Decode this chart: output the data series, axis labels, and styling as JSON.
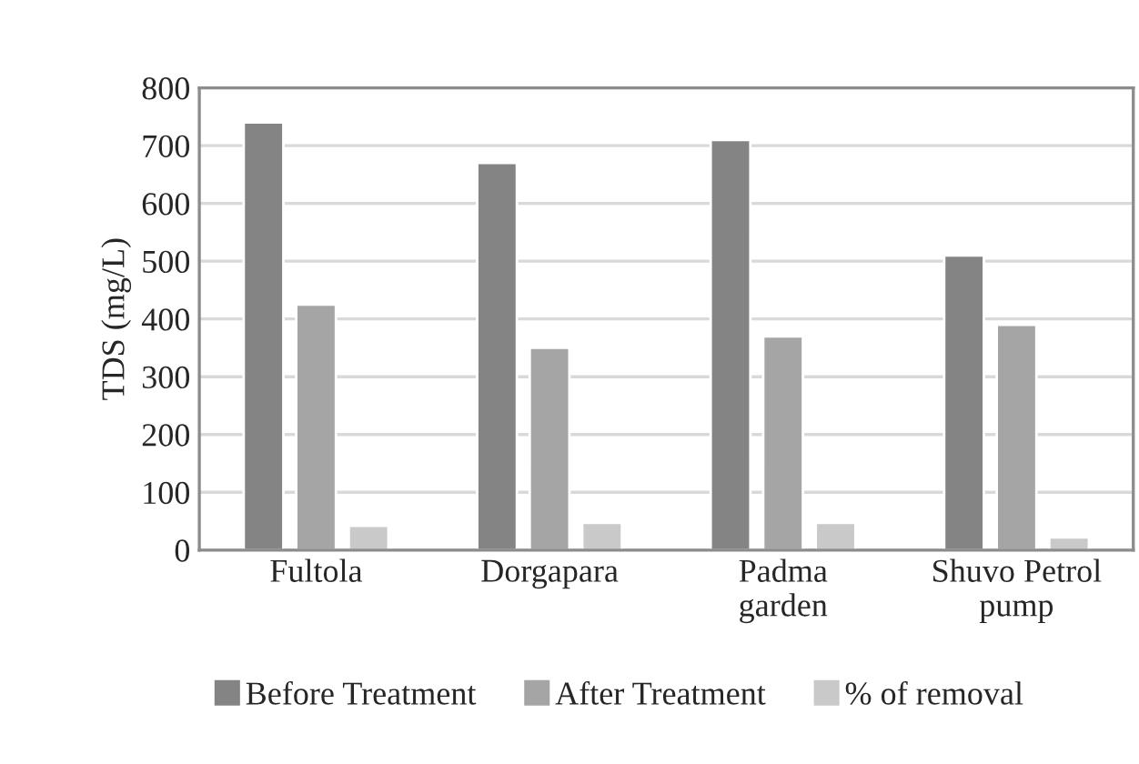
{
  "chart_data": {
    "type": "bar",
    "ylabel": "TDS (mg/L)",
    "categories": [
      "Fultola",
      "Dorgapara",
      "Padma\ngarden",
      "Shuvo Petrol\npump"
    ],
    "series": [
      {
        "name": "Before Treatment",
        "color": "#848484",
        "values": [
          740,
          670,
          710,
          510
        ]
      },
      {
        "name": "After Treatment",
        "color": "#a5a5a5",
        "values": [
          425,
          350,
          370,
          390
        ]
      },
      {
        "name": "% of removal",
        "color": "#c9c9c9",
        "values": [
          42,
          47,
          47,
          22
        ]
      }
    ],
    "ylim": [
      0,
      800
    ],
    "yticks": [
      0,
      100,
      200,
      300,
      400,
      500,
      600,
      700,
      800
    ],
    "grid": "y",
    "legend": "bottom"
  }
}
